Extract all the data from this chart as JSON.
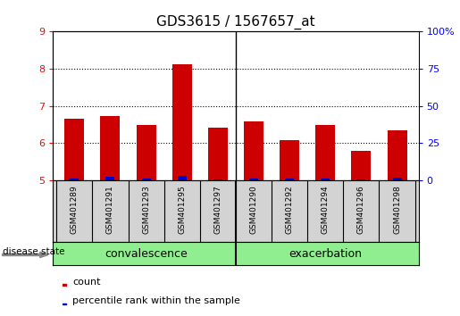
{
  "title": "GDS3615 / 1567657_at",
  "samples": [
    "GSM401289",
    "GSM401291",
    "GSM401293",
    "GSM401295",
    "GSM401297",
    "GSM401290",
    "GSM401292",
    "GSM401294",
    "GSM401296",
    "GSM401298"
  ],
  "red_values": [
    6.65,
    6.72,
    6.48,
    8.12,
    6.42,
    6.58,
    6.08,
    6.48,
    5.78,
    6.35
  ],
  "blue_values": [
    5.04,
    5.08,
    5.04,
    5.12,
    5.02,
    5.04,
    5.04,
    5.04,
    5.02,
    5.06
  ],
  "ylim_left": [
    5,
    9
  ],
  "ylim_right": [
    0,
    100
  ],
  "yticks_left": [
    5,
    6,
    7,
    8,
    9
  ],
  "yticks_right": [
    0,
    25,
    50,
    75,
    100
  ],
  "ytick_labels_right": [
    "0",
    "25",
    "50",
    "75",
    "100%"
  ],
  "group_labels": [
    "convalescence",
    "exacerbation"
  ],
  "group_color": "#90ee90",
  "bar_color_red": "#cc0000",
  "bar_color_blue": "#0000cc",
  "bar_width": 0.55,
  "bg_color_plot": "#ffffff",
  "bg_color_sample": "#d3d3d3",
  "label_disease_state": "disease state",
  "legend_count": "count",
  "legend_percentile": "percentile rank within the sample",
  "title_fontsize": 11,
  "tick_fontsize": 8,
  "sample_fontsize": 6.5,
  "group_fontsize": 9,
  "legend_fontsize": 8
}
